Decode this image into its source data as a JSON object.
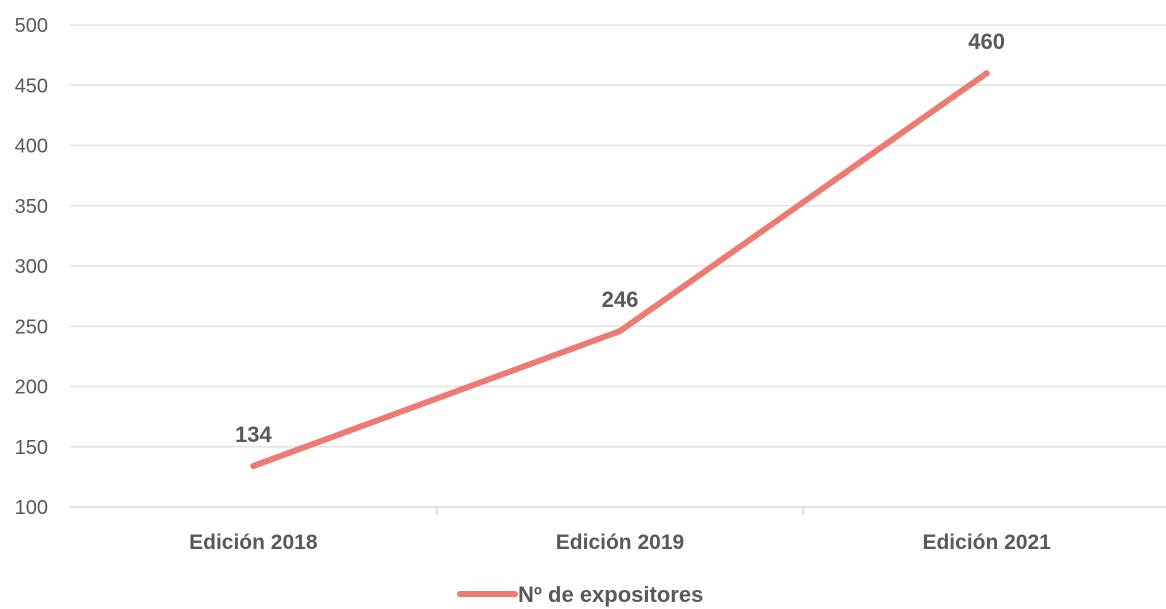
{
  "chart_data": {
    "type": "line",
    "categories": [
      "Edición 2018",
      "Edición 2019",
      "Edición 2021"
    ],
    "series": [
      {
        "name": "Nº de expositores",
        "values": [
          134,
          246,
          460
        ],
        "color": "#ee7b73"
      }
    ],
    "ylim": [
      100,
      500
    ],
    "yticks": [
      100,
      150,
      200,
      250,
      300,
      350,
      400,
      450,
      500
    ],
    "data_labels": [
      "134",
      "246",
      "460"
    ],
    "grid": true,
    "legend_position": "bottom",
    "title": "",
    "xlabel": "",
    "ylabel": ""
  }
}
